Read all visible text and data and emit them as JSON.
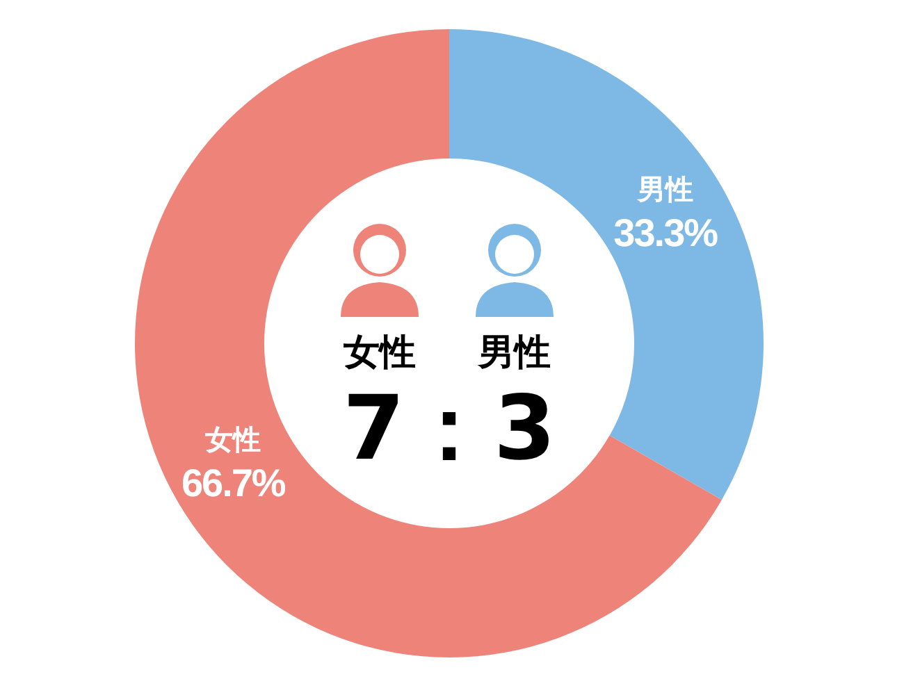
{
  "chart_data": {
    "type": "donut",
    "categories": [
      "男性",
      "女性"
    ],
    "values": [
      33.3,
      66.7
    ],
    "colors": [
      "#7db9e4",
      "#ee8479"
    ],
    "value_labels": [
      "33.3%",
      "66.7%"
    ],
    "legend": "center",
    "annotations": [
      "7：3"
    ]
  }
}
